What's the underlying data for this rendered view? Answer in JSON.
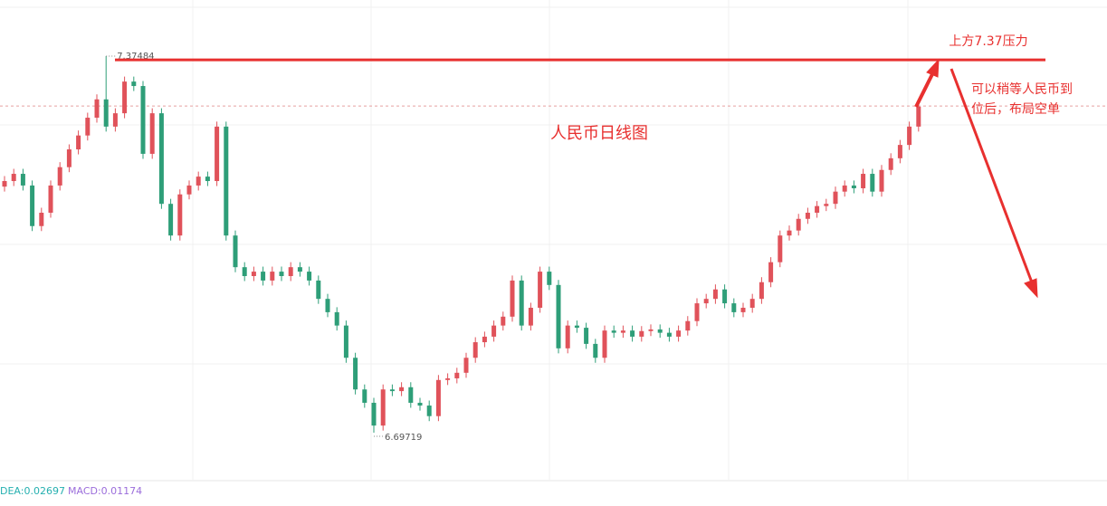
{
  "chart_data": {
    "type": "candlestick",
    "title": "人民币日线图",
    "ylim": [
      6.6125,
      7.4758
    ],
    "up_color": "#e0525a",
    "down_color": "#2e9e78",
    "open": [
      7.14,
      7.15,
      7.163,
      7.142,
      7.069,
      7.093,
      7.142,
      7.175,
      7.207,
      7.232,
      7.264,
      7.297,
      7.248,
      7.272,
      7.329,
      7.321,
      7.199,
      7.272,
      7.109,
      7.052,
      7.126,
      7.142,
      7.158,
      7.15,
      7.248,
      7.052,
      6.995,
      6.979,
      6.987,
      6.971,
      6.987,
      6.979,
      6.995,
      6.987,
      6.971,
      6.938,
      6.914,
      6.89,
      6.832,
      6.775,
      6.751,
      6.71,
      6.775,
      6.772,
      6.779,
      6.751,
      6.746,
      6.727,
      6.792,
      6.795,
      6.805,
      6.832,
      6.86,
      6.87,
      6.89,
      6.906,
      6.971,
      6.89,
      6.922,
      6.987,
      6.963,
      6.849,
      6.89,
      6.886,
      6.857,
      6.832,
      6.881,
      6.877,
      6.881,
      6.87,
      6.88,
      6.883,
      6.877,
      6.87,
      6.881,
      6.898,
      6.93,
      6.938,
      6.955,
      6.93,
      6.914,
      6.922,
      6.938,
      6.968,
      7.004,
      7.052,
      7.061,
      7.082,
      7.093,
      7.105,
      7.109,
      7.131,
      7.142,
      7.137,
      7.163,
      7.131,
      7.17,
      7.191,
      7.215,
      7.248
    ],
    "high": [
      7.159,
      7.172,
      7.172,
      7.151,
      7.102,
      7.151,
      7.184,
      7.216,
      7.241,
      7.273,
      7.306,
      7.37484,
      7.281,
      7.338,
      7.338,
      7.33,
      7.281,
      7.281,
      7.118,
      7.135,
      7.151,
      7.167,
      7.167,
      7.257,
      7.257,
      7.061,
      7.004,
      6.996,
      6.996,
      6.996,
      6.996,
      7.004,
      7.004,
      6.996,
      6.98,
      6.947,
      6.923,
      6.899,
      6.841,
      6.784,
      6.76,
      6.784,
      6.784,
      6.788,
      6.788,
      6.76,
      6.755,
      6.801,
      6.804,
      6.814,
      6.841,
      6.869,
      6.879,
      6.899,
      6.915,
      6.98,
      6.98,
      6.931,
      6.996,
      6.996,
      6.972,
      6.899,
      6.899,
      6.895,
      6.866,
      6.89,
      6.89,
      6.89,
      6.89,
      6.889,
      6.892,
      6.892,
      6.886,
      6.89,
      6.907,
      6.939,
      6.947,
      6.964,
      6.964,
      6.939,
      6.931,
      6.947,
      6.977,
      7.013,
      7.061,
      7.07,
      7.091,
      7.102,
      7.114,
      7.118,
      7.14,
      7.151,
      7.151,
      7.172,
      7.172,
      7.179,
      7.2,
      7.224,
      7.257,
      7.293
    ],
    "low": [
      7.131,
      7.141,
      7.133,
      7.06,
      7.06,
      7.084,
      7.133,
      7.166,
      7.198,
      7.223,
      7.255,
      7.239,
      7.239,
      7.263,
      7.312,
      7.19,
      7.19,
      7.1,
      7.043,
      7.043,
      7.117,
      7.133,
      7.141,
      7.141,
      7.043,
      6.986,
      6.97,
      6.97,
      6.962,
      6.962,
      6.97,
      6.97,
      6.978,
      6.962,
      6.929,
      6.905,
      6.881,
      6.823,
      6.766,
      6.742,
      6.69719,
      6.701,
      6.763,
      6.763,
      6.742,
      6.737,
      6.718,
      6.718,
      6.783,
      6.786,
      6.796,
      6.823,
      6.851,
      6.861,
      6.881,
      6.897,
      6.881,
      6.881,
      6.913,
      6.954,
      6.84,
      6.84,
      6.877,
      6.848,
      6.823,
      6.823,
      6.868,
      6.868,
      6.861,
      6.861,
      6.871,
      6.868,
      6.861,
      6.861,
      6.872,
      6.889,
      6.921,
      6.929,
      6.921,
      6.905,
      6.905,
      6.913,
      6.929,
      6.959,
      6.995,
      7.043,
      7.052,
      7.073,
      7.084,
      7.096,
      7.1,
      7.122,
      7.128,
      7.128,
      7.122,
      7.122,
      7.161,
      7.182,
      7.206,
      7.239
    ],
    "close": [
      7.15,
      7.163,
      7.142,
      7.069,
      7.093,
      7.142,
      7.175,
      7.207,
      7.232,
      7.264,
      7.297,
      7.248,
      7.272,
      7.329,
      7.321,
      7.199,
      7.272,
      7.109,
      7.052,
      7.126,
      7.142,
      7.158,
      7.15,
      7.248,
      7.052,
      6.995,
      6.979,
      6.987,
      6.971,
      6.987,
      6.979,
      6.995,
      6.987,
      6.971,
      6.938,
      6.914,
      6.89,
      6.832,
      6.775,
      6.751,
      6.71,
      6.775,
      6.772,
      6.779,
      6.751,
      6.746,
      6.727,
      6.792,
      6.795,
      6.805,
      6.832,
      6.86,
      6.87,
      6.89,
      6.906,
      6.971,
      6.89,
      6.922,
      6.987,
      6.963,
      6.849,
      6.89,
      6.886,
      6.857,
      6.832,
      6.881,
      6.877,
      6.881,
      6.87,
      6.88,
      6.883,
      6.877,
      6.87,
      6.881,
      6.898,
      6.93,
      6.938,
      6.955,
      6.93,
      6.914,
      6.922,
      6.938,
      6.968,
      7.004,
      7.052,
      7.061,
      7.082,
      7.093,
      7.105,
      7.109,
      7.131,
      7.142,
      7.137,
      7.163,
      7.131,
      7.17,
      7.191,
      7.215,
      7.248,
      7.284
    ],
    "resistance": {
      "value": 7.368,
      "color": "#e8302f",
      "label": "上方7.37压力"
    },
    "price_line": {
      "value": 7.285,
      "color": "#e8a0a0"
    },
    "note": [
      "可以稍等人民币到",
      "位后，布局空单"
    ],
    "indicators": [
      {
        "text": "DEA:0.02697",
        "color": "#26b0b0"
      },
      {
        "text": "MACD:0.01174",
        "color": "#9b6ddb"
      }
    ]
  }
}
